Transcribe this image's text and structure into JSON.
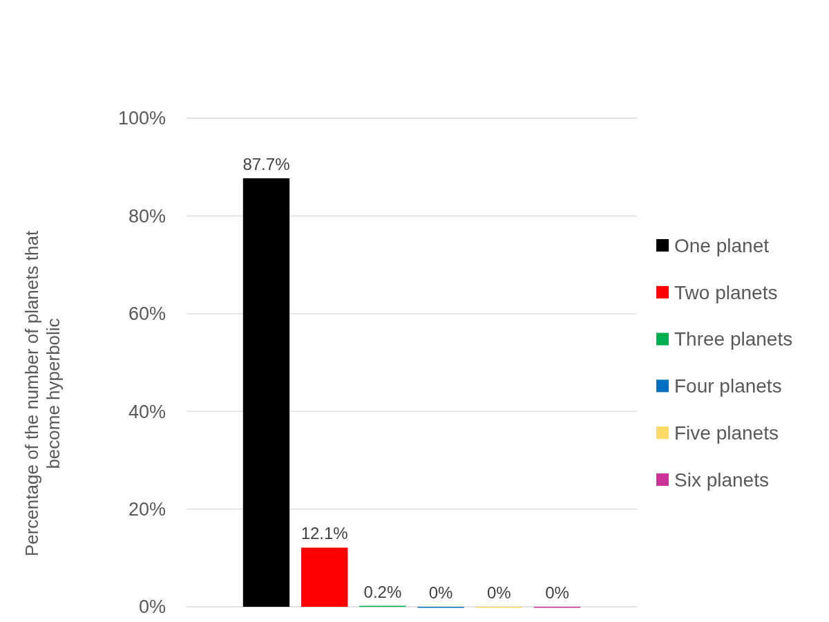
{
  "chart_data": {
    "type": "bar",
    "ylabel": "Percentage of the number of planets that become hyperbolic",
    "categories": [
      null
    ],
    "series": [
      {
        "name": "One planet",
        "color": "#000000",
        "values": [
          87.7
        ],
        "value_labels": [
          "87.7%"
        ]
      },
      {
        "name": "Two planets",
        "color": "#ff0000",
        "values": [
          12.1
        ],
        "value_labels": [
          "12.1%"
        ]
      },
      {
        "name": "Three planets",
        "color": "#00b050",
        "values": [
          0.2
        ],
        "value_labels": [
          "0.2%"
        ]
      },
      {
        "name": "Four planets",
        "color": "#0070c0",
        "values": [
          0
        ],
        "value_labels": [
          "0%"
        ]
      },
      {
        "name": "Five planets",
        "color": "#ffd966",
        "values": [
          0
        ],
        "value_labels": [
          "0%"
        ]
      },
      {
        "name": "Six planets",
        "color": "#cc3399",
        "values": [
          0
        ],
        "value_labels": [
          "0%"
        ]
      }
    ],
    "ylim": [
      0,
      100
    ],
    "yticks": [
      {
        "value": 0,
        "label": "0%"
      },
      {
        "value": 20,
        "label": "20%"
      },
      {
        "value": 40,
        "label": "40%"
      },
      {
        "value": 60,
        "label": "60%"
      },
      {
        "value": 80,
        "label": "80%"
      },
      {
        "value": 100,
        "label": "100%"
      }
    ],
    "grid": "y",
    "legend": "right"
  }
}
